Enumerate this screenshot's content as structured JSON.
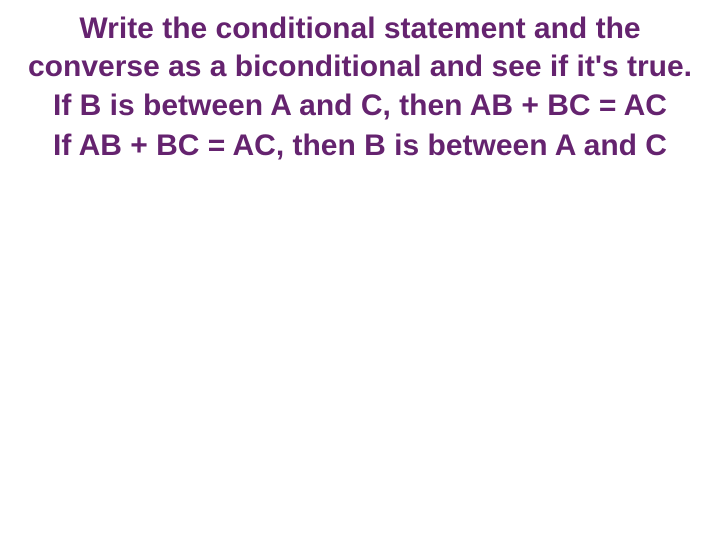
{
  "slide": {
    "instruction": "Write the conditional statement and the converse as a biconditional and see if it's true.",
    "conditional": "If B is between A and C, then AB + BC = AC",
    "converse": "If AB + BC = AC, then B is between A and C",
    "text_color": "#65236f",
    "background_color": "#ffffff",
    "font_size": 30,
    "font_weight": "bold",
    "text_align": "center"
  }
}
